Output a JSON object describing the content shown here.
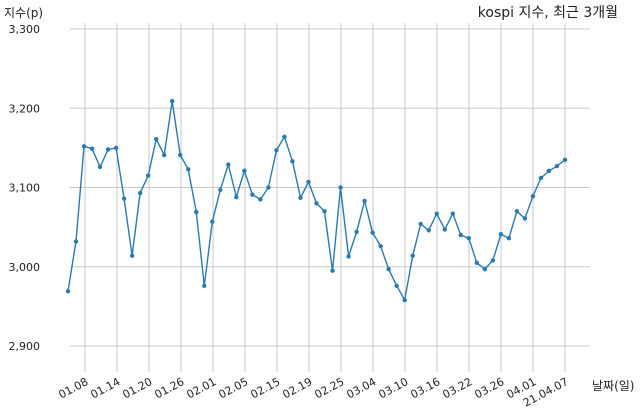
{
  "chart_data": {
    "type": "line",
    "title": "kospi 지수, 최근 3개월",
    "xlabel": "날짜(일)",
    "ylabel": "지수(p)",
    "ylim": [
      2900,
      3300
    ],
    "y_ticks": [
      "2,900",
      "3,000",
      "3,100",
      "3,200",
      "3,300"
    ],
    "x_tick_labels": [
      "01.08",
      "01.14",
      "01.20",
      "01.26",
      "02.01",
      "02.05",
      "02.15",
      "02.19",
      "02.25",
      "03.04",
      "03.10",
      "03.16",
      "03.22",
      "03.26",
      "04.01",
      "21.04.07"
    ],
    "grid": true,
    "series_color": "#2a7ab0",
    "series": [
      {
        "values": [
          2969,
          3032,
          3152,
          3149,
          3126,
          3148,
          3150,
          3086,
          3014,
          3093,
          3115,
          3161,
          3141,
          3209,
          3141,
          3123,
          3069,
          2976,
          3057,
          3097,
          3129,
          3088,
          3121,
          3091,
          3085,
          3100,
          3147,
          3164,
          3133,
          3087,
          3107,
          3080,
          3070,
          2995,
          3100,
          3013,
          3044,
          3083,
          3043,
          3026,
          2997,
          2976,
          2958,
          3014,
          3054,
          3046,
          3067,
          3047,
          3067,
          3040,
          3036,
          3005,
          2997,
          3008,
          3041,
          3036,
          3070,
          3061,
          3089,
          3112,
          3121,
          3127,
          3135
        ]
      }
    ]
  }
}
